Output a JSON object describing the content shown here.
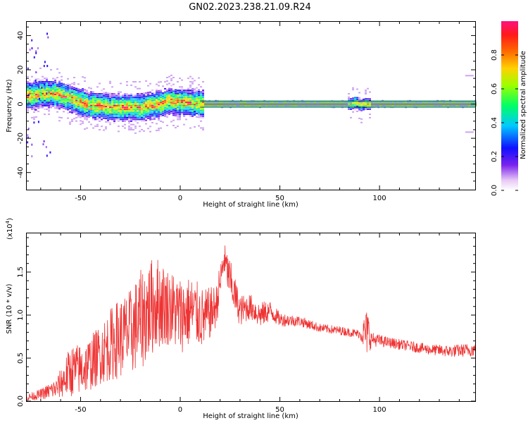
{
  "title": "GN02.2023.238.21.09.R24",
  "chart_data": [
    {
      "type": "heatmap",
      "xlabel": "Height of straight line (km)",
      "ylabel": "Frequency (Hz)",
      "xlim": [
        -77,
        148
      ],
      "ylim": [
        -50,
        48
      ],
      "xticks": [
        -50,
        0,
        50,
        100
      ],
      "xtick_labels": [
        "-50",
        "0",
        "50",
        "100"
      ],
      "yticks": [
        -40,
        -20,
        0,
        20,
        40
      ],
      "ytick_labels": [
        "-40",
        "-20",
        "0",
        "20",
        "40"
      ],
      "colorbar": {
        "label": "Normalized spectral amplitude",
        "range": [
          0,
          1
        ],
        "ticks": [
          0.0,
          0.2,
          0.4,
          0.6,
          0.8
        ],
        "tick_labels": [
          "0.0",
          "0.2",
          "0.4",
          "0.6",
          "0.8"
        ]
      },
      "ridge": [
        {
          "x": -75,
          "y": 5
        },
        {
          "x": -70,
          "y": 6
        },
        {
          "x": -65,
          "y": 6
        },
        {
          "x": -60,
          "y": 5
        },
        {
          "x": -55,
          "y": 3
        },
        {
          "x": -50,
          "y": 1
        },
        {
          "x": -45,
          "y": -1
        },
        {
          "x": -40,
          "y": -1
        },
        {
          "x": -35,
          "y": -2
        },
        {
          "x": -30,
          "y": -2
        },
        {
          "x": -25,
          "y": -2
        },
        {
          "x": -20,
          "y": -2
        },
        {
          "x": -15,
          "y": -1
        },
        {
          "x": -10,
          "y": 0
        },
        {
          "x": -6,
          "y": 2
        },
        {
          "x": -2,
          "y": 1
        },
        {
          "x": 5,
          "y": 1
        },
        {
          "x": 10,
          "y": 0
        },
        {
          "x": 85,
          "y": 0
        },
        {
          "x": 88,
          "y": 1
        },
        {
          "x": 90,
          "y": -1
        },
        {
          "x": 92,
          "y": 0
        },
        {
          "x": 148,
          "y": 0
        }
      ],
      "grid": false
    },
    {
      "type": "line",
      "xlabel": "Height of straight line (km)",
      "ylabel": "SNR (10 * v/v)",
      "y_multiplier_label": "(x10",
      "y_multiplier_exp": "4",
      "y_multiplier_close": ")",
      "xlim": [
        -77,
        148
      ],
      "ylim": [
        0,
        1.95
      ],
      "xticks": [
        -50,
        0,
        50,
        100
      ],
      "xtick_labels": [
        "-50",
        "0",
        "50",
        "100"
      ],
      "yticks": [
        0.0,
        0.5,
        1.0,
        1.5
      ],
      "ytick_labels": [
        "0.0",
        "0.5",
        "1.0",
        "1.5"
      ],
      "series": [
        {
          "color": "#ee3333",
          "envelope": [
            {
              "x": -77,
              "mean": 0.04,
              "amp": 0.04
            },
            {
              "x": -70,
              "mean": 0.08,
              "amp": 0.06
            },
            {
              "x": -62,
              "mean": 0.15,
              "amp": 0.12
            },
            {
              "x": -55,
              "mean": 0.35,
              "amp": 0.3
            },
            {
              "x": -48,
              "mean": 0.38,
              "amp": 0.3
            },
            {
              "x": -40,
              "mean": 0.55,
              "amp": 0.35
            },
            {
              "x": -33,
              "mean": 0.7,
              "amp": 0.45
            },
            {
              "x": -25,
              "mean": 0.8,
              "amp": 0.5
            },
            {
              "x": -18,
              "mean": 1.0,
              "amp": 0.6
            },
            {
              "x": -12,
              "mean": 1.15,
              "amp": 0.55
            },
            {
              "x": -6,
              "mean": 1.1,
              "amp": 0.45
            },
            {
              "x": 0,
              "mean": 1.0,
              "amp": 0.45
            },
            {
              "x": 6,
              "mean": 1.05,
              "amp": 0.4
            },
            {
              "x": 12,
              "mean": 0.95,
              "amp": 0.35
            },
            {
              "x": 18,
              "mean": 1.1,
              "amp": 0.25
            },
            {
              "x": 22,
              "mean": 1.65,
              "amp": 0.2
            },
            {
              "x": 25,
              "mean": 1.4,
              "amp": 0.25
            },
            {
              "x": 30,
              "mean": 1.05,
              "amp": 0.18
            },
            {
              "x": 35,
              "mean": 1.1,
              "amp": 0.15
            },
            {
              "x": 40,
              "mean": 1.0,
              "amp": 0.15
            },
            {
              "x": 45,
              "mean": 1.05,
              "amp": 0.12
            },
            {
              "x": 50,
              "mean": 0.95,
              "amp": 0.08
            },
            {
              "x": 60,
              "mean": 0.93,
              "amp": 0.06
            },
            {
              "x": 70,
              "mean": 0.85,
              "amp": 0.05
            },
            {
              "x": 80,
              "mean": 0.82,
              "amp": 0.05
            },
            {
              "x": 90,
              "mean": 0.78,
              "amp": 0.05
            },
            {
              "x": 94,
              "mean": 0.8,
              "amp": 0.3
            },
            {
              "x": 96,
              "mean": 0.72,
              "amp": 0.08
            },
            {
              "x": 105,
              "mean": 0.68,
              "amp": 0.06
            },
            {
              "x": 115,
              "mean": 0.64,
              "amp": 0.06
            },
            {
              "x": 125,
              "mean": 0.6,
              "amp": 0.06
            },
            {
              "x": 135,
              "mean": 0.58,
              "amp": 0.07
            },
            {
              "x": 148,
              "mean": 0.6,
              "amp": 0.08
            }
          ]
        }
      ],
      "grid": false
    }
  ]
}
